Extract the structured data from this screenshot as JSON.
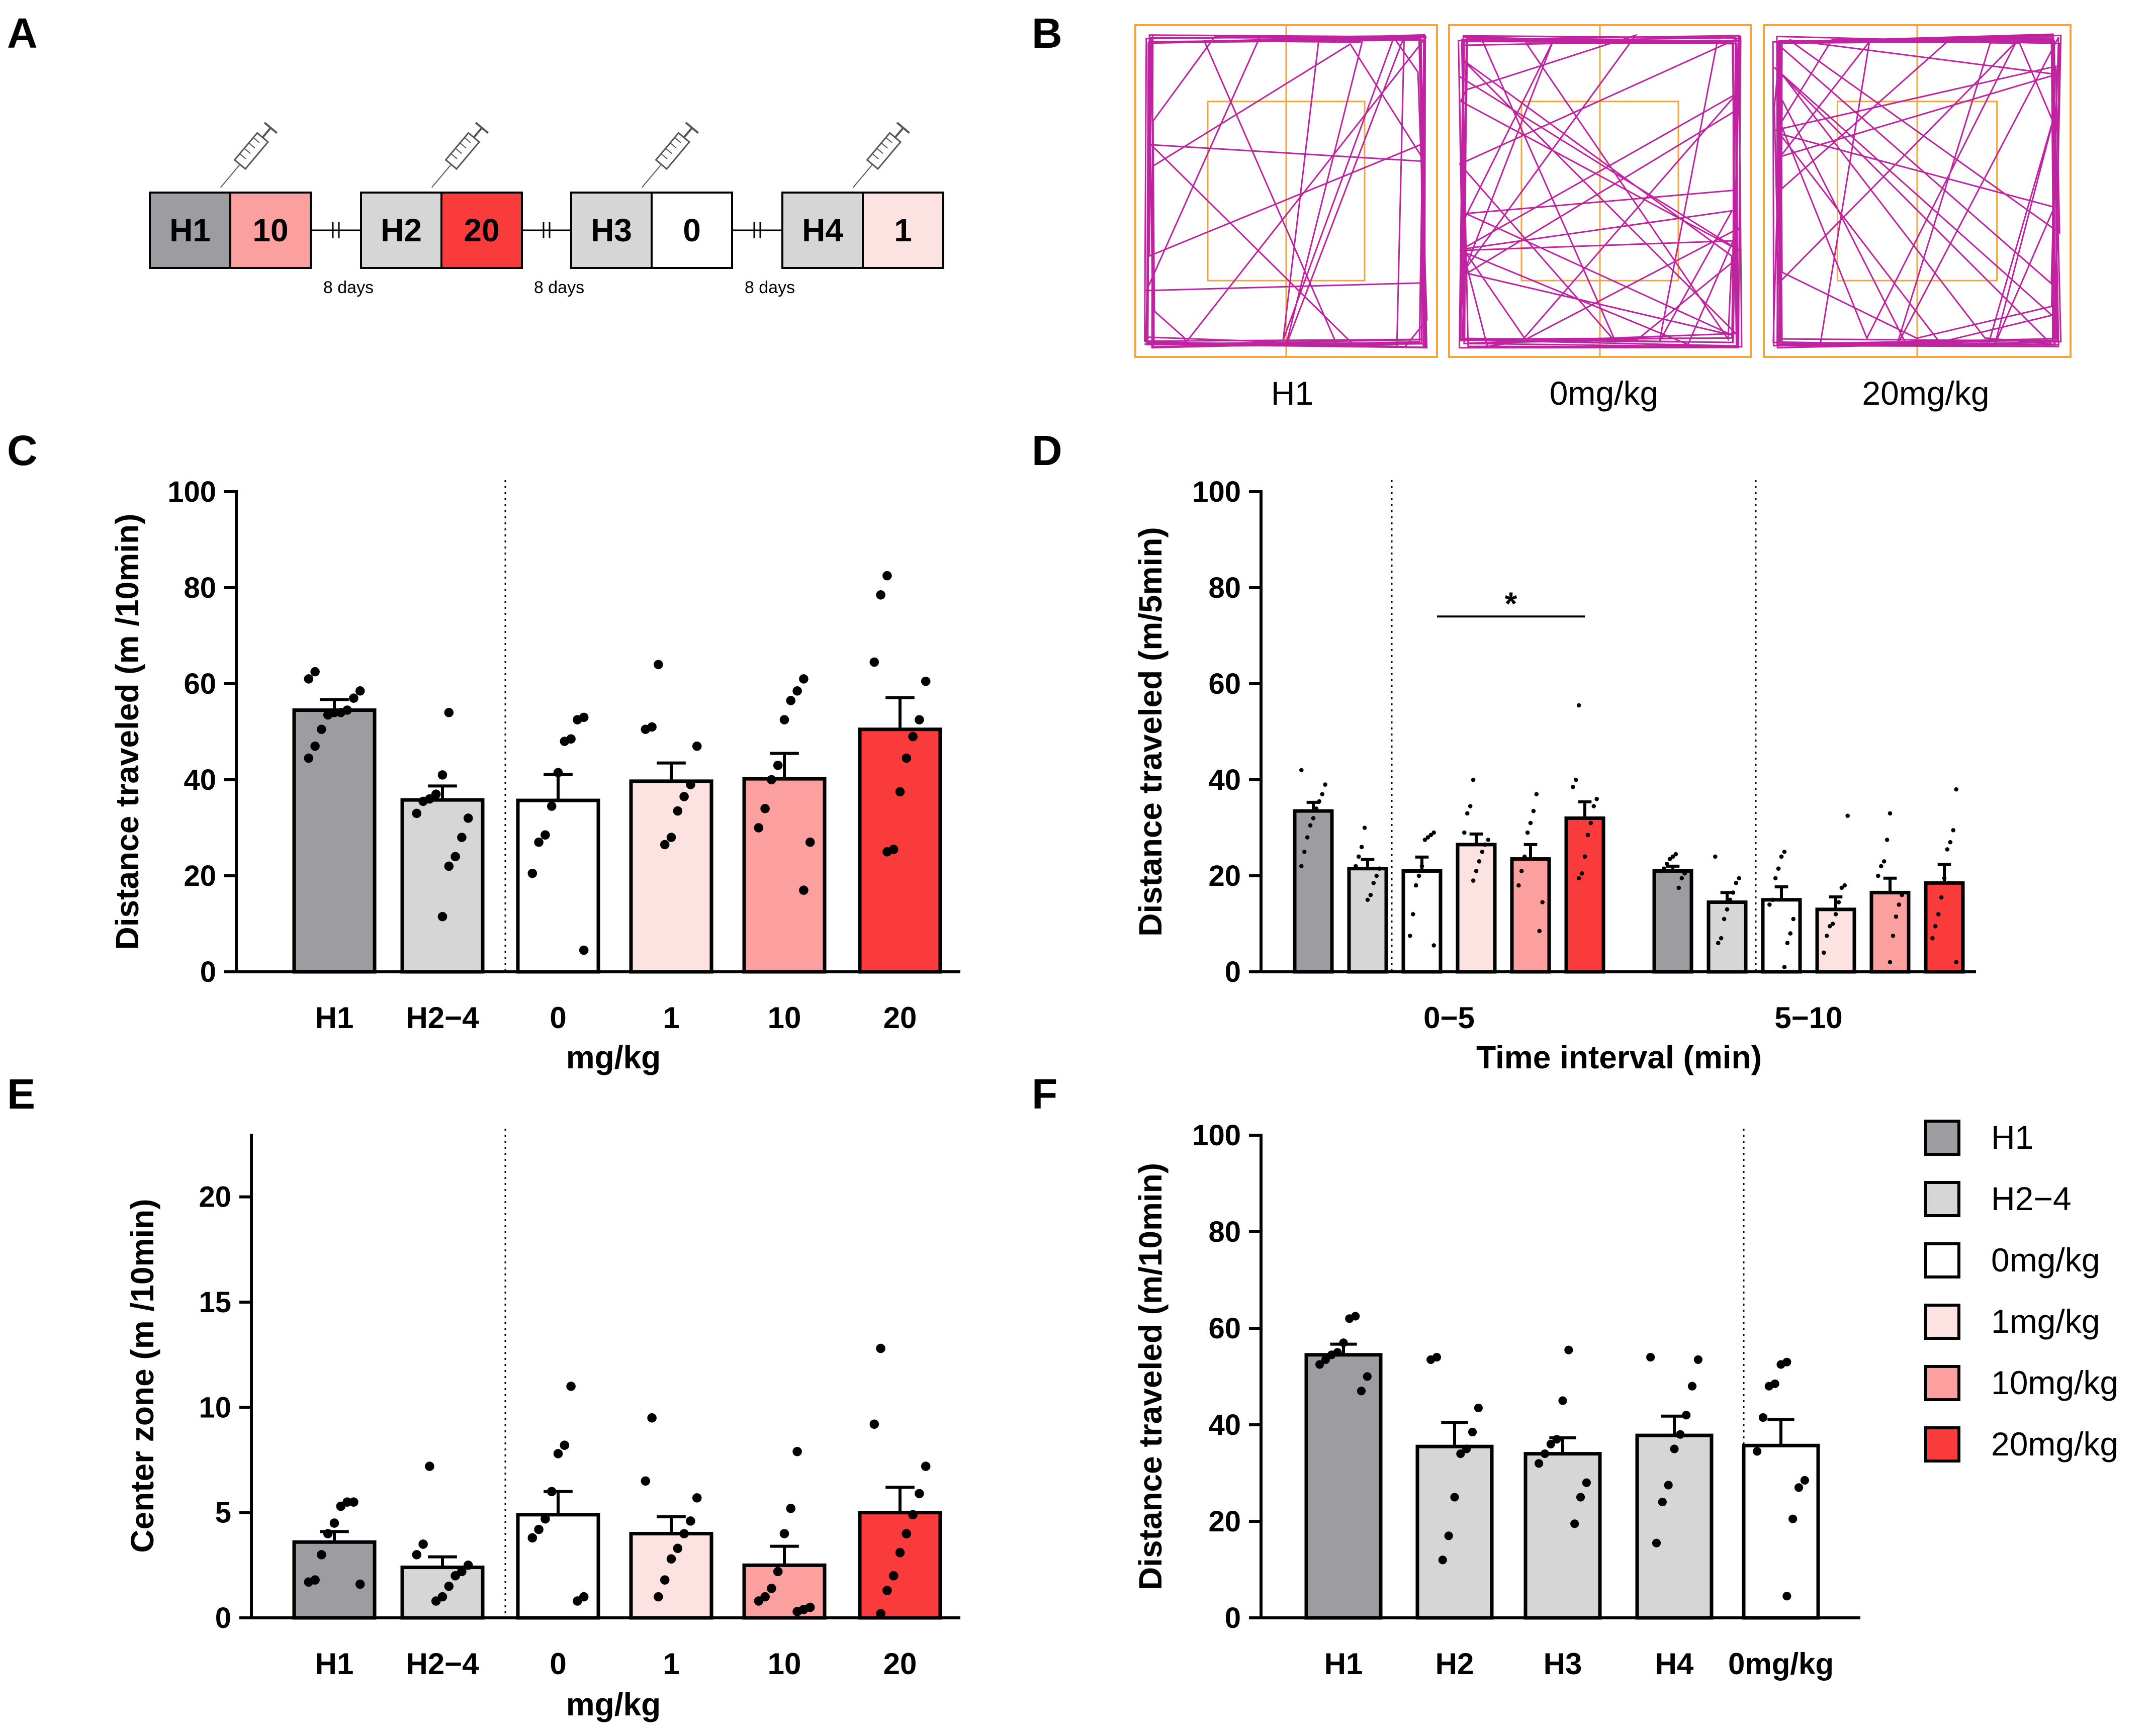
{
  "colors": {
    "H1": "#9d9ca0",
    "H2-4": "#d6d6d6",
    "0": "#ffffff",
    "1": "#fde2e2",
    "10": "#fb9f9f",
    "20": "#f93b3b",
    "trace": "#c0239f",
    "arena": "#f5a43c"
  },
  "panels": {
    "A": {
      "label": "A",
      "sessions": [
        {
          "name": "H1",
          "dose": "10",
          "gap": "8 days"
        },
        {
          "name": "H2",
          "dose": "20",
          "gap": "8 days"
        },
        {
          "name": "H3",
          "dose": "0",
          "gap": "8 days"
        },
        {
          "name": "H4",
          "dose": "1",
          "gap": ""
        }
      ]
    },
    "B": {
      "label": "B",
      "arenas": [
        "H1",
        "0mg/kg",
        "20mg/kg"
      ]
    },
    "C": {
      "label": "C"
    },
    "D": {
      "label": "D"
    },
    "E": {
      "label": "E"
    },
    "F": {
      "label": "F",
      "legend": [
        "H1",
        "H2−4",
        "0mg/kg",
        "1mg/kg",
        "10mg/kg",
        "20mg/kg"
      ]
    }
  },
  "chart_data": [
    {
      "id": "C",
      "type": "bar",
      "ylabel": "Distance traveled  (m /10min)",
      "xlabel": "mg/kg",
      "ylim": [
        0,
        100
      ],
      "yticks": [
        0,
        20,
        40,
        60,
        80,
        100
      ],
      "categories": [
        "H1",
        "H2−4",
        "0",
        "1",
        "10",
        "20"
      ],
      "colorKeys": [
        "H1",
        "H2-4",
        "0",
        "1",
        "10",
        "20"
      ],
      "means": [
        54.5,
        35.8,
        35.7,
        39.7,
        40.2,
        50.5
      ],
      "sem": [
        2.2,
        2.9,
        5.4,
        3.8,
        5.3,
        6.6
      ],
      "points": [
        [
          62.5,
          61.0,
          58.5,
          57.0,
          54.5,
          54.0,
          54.0,
          53.5,
          50.5,
          47.0,
          44.5
        ],
        [
          54.0,
          41.0,
          37.0,
          36.0,
          35.5,
          33.0,
          32.0,
          28.0,
          24.0,
          22.0,
          11.5
        ],
        [
          53.0,
          52.5,
          48.5,
          48.0,
          41.5,
          34.5,
          28.5,
          27.0,
          20.5,
          4.5
        ],
        [
          64.0,
          51.0,
          50.5,
          47.0,
          39.0,
          36.5,
          33.5,
          28.0,
          26.5
        ],
        [
          61.0,
          58.5,
          56.5,
          52.5,
          43.0,
          40.0,
          34.0,
          30.0,
          27.0,
          17.0
        ],
        [
          82.5,
          78.5,
          64.5,
          60.5,
          52.5,
          49.0,
          44.5,
          37.5,
          25.5,
          25.0
        ]
      ],
      "separator_after": 1
    },
    {
      "id": "D",
      "type": "bar",
      "ylabel": "Distance traveled  (m/5min)",
      "xlabel": "Time interval (min)",
      "ylim": [
        0,
        100
      ],
      "yticks": [
        0,
        20,
        40,
        60,
        80,
        100
      ],
      "groups": [
        "0−5",
        "5−10"
      ],
      "series": [
        "H1",
        "H2-4",
        "0",
        "1",
        "10",
        "20"
      ],
      "means": [
        [
          33.5,
          21.5,
          21.0,
          26.5,
          23.5,
          32.0
        ],
        [
          21.0,
          14.5,
          15.0,
          13.0,
          16.5,
          18.5
        ]
      ],
      "sem": [
        [
          1.8,
          1.9,
          2.9,
          2.2,
          3.0,
          3.4
        ],
        [
          1.0,
          2.0,
          2.7,
          2.6,
          3.0,
          3.9
        ]
      ],
      "points": [
        [
          [
            42.0,
            39.0,
            37.0,
            35.5,
            34.0,
            32.0,
            30.5,
            28.0,
            25.0,
            22.0
          ],
          [
            30.0,
            26.0,
            24.0,
            22.0,
            21.5,
            20.0,
            18.5,
            16.0,
            15.0
          ],
          [
            29.0,
            28.5,
            28.0,
            27.5,
            22.0,
            20.0,
            18.0,
            12.0,
            7.5,
            5.5
          ],
          [
            40.0,
            34.5,
            33.0,
            29.0,
            27.5,
            26.5,
            25.0,
            23.0,
            21.0,
            19.0
          ],
          [
            37.0,
            33.5,
            31.0,
            29.0,
            24.0,
            21.0,
            18.0,
            14.5,
            8.5
          ],
          [
            55.5,
            40.0,
            38.5,
            36.0,
            34.5,
            31.0,
            28.5,
            24.0,
            20.5,
            19.5
          ]
        ],
        [
          [
            24.5,
            24.0,
            23.5,
            22.5,
            21.5,
            21.0,
            20.5,
            19.5,
            17.5
          ],
          [
            24.0,
            19.5,
            18.5,
            16.5,
            15.0,
            13.0,
            11.0,
            7.0,
            6.0
          ],
          [
            25.0,
            24.0,
            21.5,
            19.5,
            15.0,
            14.0,
            11.0,
            8.0,
            6.0,
            1.0
          ],
          [
            32.5,
            18.0,
            17.5,
            14.5,
            12.0,
            10.0,
            9.5,
            7.5,
            4.0
          ],
          [
            33.0,
            27.5,
            23.0,
            22.0,
            20.0,
            16.0,
            14.0,
            11.5,
            7.5,
            2.0
          ],
          [
            38.0,
            29.5,
            27.0,
            25.5,
            19.5,
            15.5,
            12.0,
            9.5,
            7.0,
            2.0
          ]
        ]
      ],
      "significance": {
        "label": "*",
        "from": 2,
        "to": 5,
        "y": 74
      }
    },
    {
      "id": "E",
      "type": "bar",
      "ylabel": "Center zone  (m /10min)",
      "xlabel": "mg/kg",
      "ylim": [
        0,
        23
      ],
      "yticks": [
        0,
        5,
        10,
        15,
        20
      ],
      "categories": [
        "H1",
        "H2−4",
        "0",
        "1",
        "10",
        "20"
      ],
      "colorKeys": [
        "H1",
        "H2-4",
        "0",
        "1",
        "10",
        "20"
      ],
      "means": [
        3.6,
        2.4,
        4.9,
        4.0,
        2.5,
        5.0
      ],
      "sem": [
        0.5,
        0.5,
        1.1,
        0.8,
        0.9,
        1.2
      ],
      "points": [
        [
          5.5,
          5.5,
          5.3,
          4.5,
          4.0,
          3.0,
          1.8,
          1.7,
          1.6
        ],
        [
          7.2,
          3.5,
          3.0,
          2.5,
          2.2,
          2.0,
          1.5,
          1.0,
          0.8
        ],
        [
          11.0,
          8.2,
          7.8,
          6.0,
          4.7,
          4.2,
          3.8,
          1.0,
          0.8
        ],
        [
          9.5,
          6.5,
          5.7,
          4.6,
          4.0,
          3.3,
          2.8,
          1.8,
          1.0
        ],
        [
          7.9,
          5.2,
          4.0,
          2.2,
          1.4,
          1.0,
          0.8,
          0.5,
          0.4,
          0.3
        ],
        [
          12.8,
          9.2,
          7.2,
          5.9,
          4.9,
          4.0,
          3.1,
          2.0,
          1.3,
          0.2
        ]
      ],
      "separator_after": 1
    },
    {
      "id": "F",
      "type": "bar",
      "ylabel": "Distance traveled (m/10min)",
      "xlabel": "",
      "ylim": [
        0,
        100
      ],
      "yticks": [
        0,
        20,
        40,
        60,
        80,
        100
      ],
      "categories": [
        "H1",
        "H2",
        "H3",
        "H4",
        "0mg/kg"
      ],
      "colorKeys": [
        "H1",
        "H2-4",
        "H2-4",
        "H2-4",
        "0"
      ],
      "means": [
        54.5,
        35.5,
        34.0,
        37.8,
        35.7
      ],
      "sem": [
        2.2,
        5.0,
        3.3,
        4.0,
        5.4
      ],
      "points": [
        [
          62.5,
          62.0,
          57.0,
          55.0,
          54.5,
          53.5,
          52.5,
          50.0,
          47.0
        ],
        [
          54.0,
          53.5,
          43.5,
          38.5,
          35.0,
          34.0,
          25.0,
          17.0,
          12.0
        ],
        [
          55.5,
          45.0,
          37.0,
          36.0,
          34.0,
          32.0,
          28.0,
          25.0,
          19.5
        ],
        [
          54.0,
          53.5,
          48.0,
          42.0,
          38.0,
          35.0,
          27.5,
          24.0,
          15.5
        ],
        [
          53.0,
          52.5,
          48.5,
          48.0,
          41.5,
          34.5,
          28.5,
          27.0,
          20.5,
          4.5
        ]
      ],
      "separator_after": 3
    }
  ]
}
